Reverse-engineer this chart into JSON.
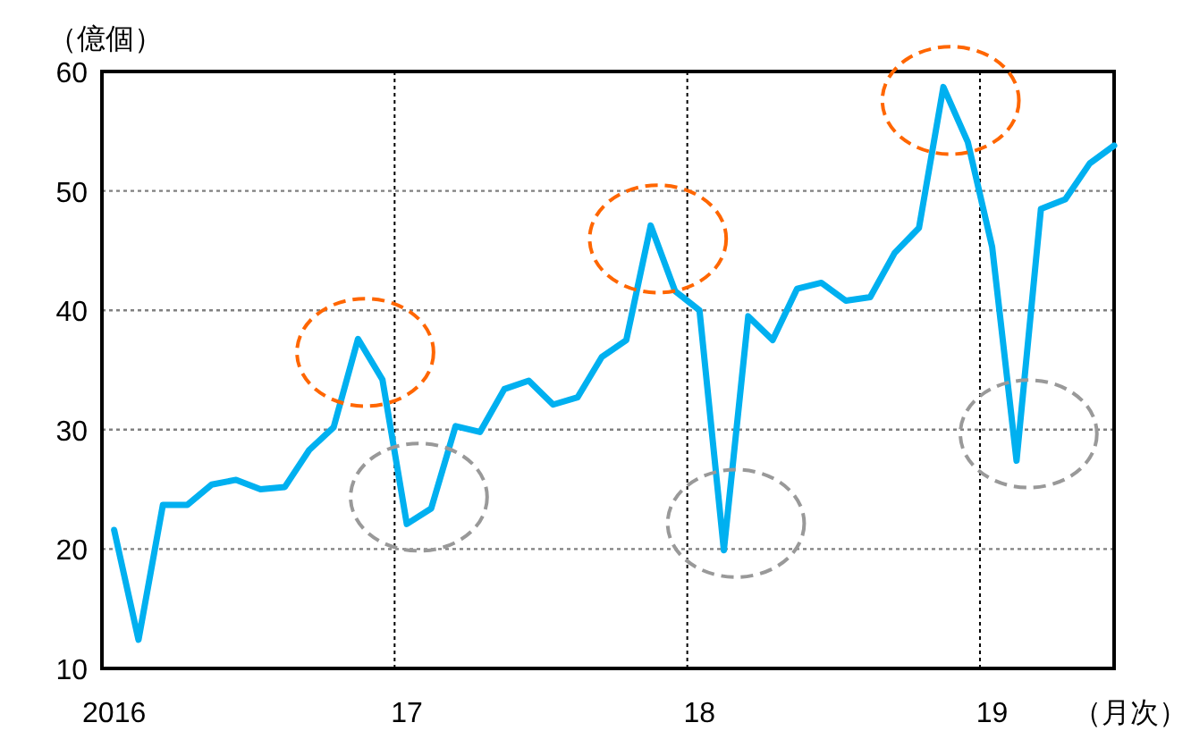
{
  "chart_data": {
    "type": "line",
    "ylabel": "（億個）",
    "xlabel": "（月次）",
    "categories": [
      "2016",
      null,
      null,
      null,
      null,
      null,
      null,
      null,
      null,
      null,
      null,
      null,
      "17",
      null,
      null,
      null,
      null,
      null,
      null,
      null,
      null,
      null,
      null,
      null,
      "18",
      null,
      null,
      null,
      null,
      null,
      null,
      null,
      null,
      null,
      null,
      null,
      "19",
      null,
      null,
      null,
      null,
      null
    ],
    "series": [
      {
        "color": "#00b0f0",
        "values": [
          21.6,
          12.4,
          23.7,
          23.7,
          25.4,
          25.8,
          25.0,
          25.2,
          28.3,
          30.2,
          37.6,
          34.2,
          22.1,
          23.4,
          30.3,
          29.8,
          33.4,
          34.1,
          32.1,
          32.7,
          36.1,
          37.5,
          47.1,
          41.6,
          40.0,
          19.9,
          39.5,
          37.5,
          41.8,
          42.3,
          40.8,
          41.1,
          44.8,
          46.9,
          58.7,
          54.1,
          45.3,
          27.4,
          48.5,
          49.3,
          52.3,
          53.8
        ]
      }
    ],
    "ylim": [
      10,
      60
    ],
    "yticks": [
      10,
      20,
      30,
      40,
      50,
      60
    ],
    "grid": true,
    "marker": "none",
    "line_style": "solid"
  }
}
